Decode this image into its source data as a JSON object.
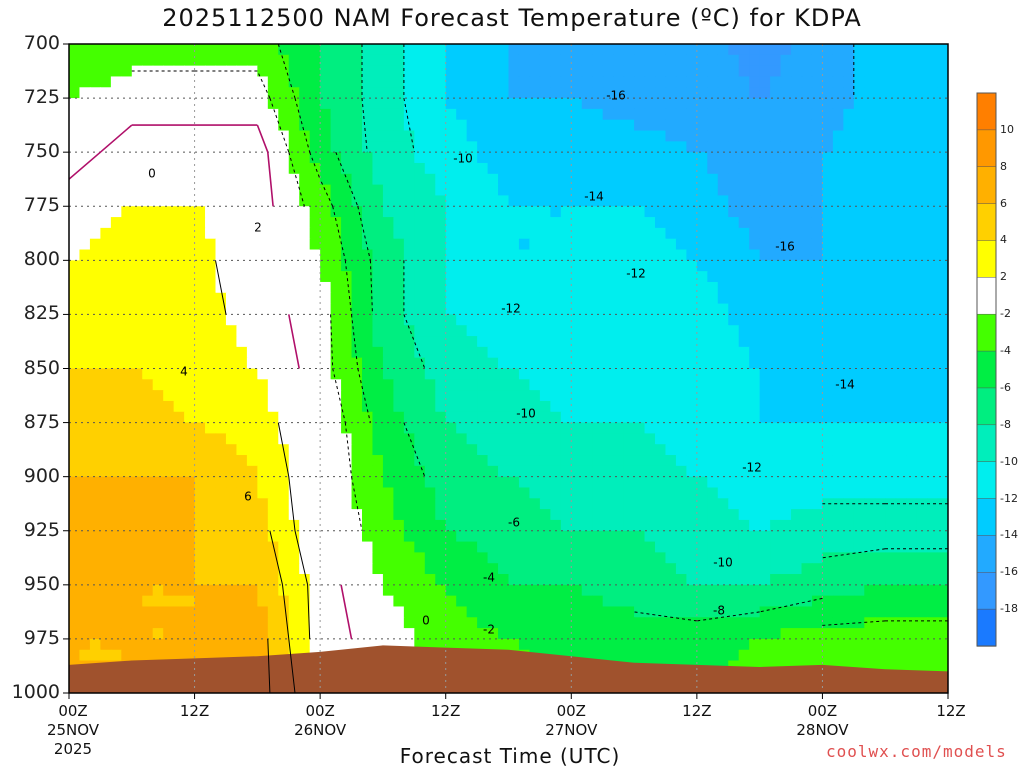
{
  "title": "2025112500 NAM Forecast Temperature (ºC) for KDPA",
  "x_axis_title": "Forecast Time (UTC)",
  "credit": "coolwx.com/models",
  "y_ticks": [
    "700",
    "725",
    "750",
    "775",
    "800",
    "825",
    "850",
    "875",
    "900",
    "925",
    "950",
    "975",
    "1000"
  ],
  "x_ticks": [
    {
      "label": "00Z",
      "sub": "25NOV",
      "sub2": "2025"
    },
    {
      "label": "12Z",
      "sub": "",
      "sub2": ""
    },
    {
      "label": "00Z",
      "sub": "26NOV",
      "sub2": ""
    },
    {
      "label": "12Z",
      "sub": "",
      "sub2": ""
    },
    {
      "label": "00Z",
      "sub": "27NOV",
      "sub2": ""
    },
    {
      "label": "12Z",
      "sub": "",
      "sub2": ""
    },
    {
      "label": "00Z",
      "sub": "28NOV",
      "sub2": ""
    },
    {
      "label": "12Z",
      "sub": "",
      "sub2": ""
    }
  ],
  "colorbar": {
    "labels": [
      "10",
      "8",
      "6",
      "4",
      "2",
      "-2",
      "-4",
      "-6",
      "-8",
      "-10",
      "-12",
      "-14",
      "-16",
      "-18"
    ],
    "colors": [
      "#ff7f00",
      "#ff9800",
      "#ffb000",
      "#ffd000",
      "#ffff00",
      "#ffffff",
      "#44ff00",
      "#00ee44",
      "#00ee80",
      "#00eebb",
      "#00eeee",
      "#00ccff",
      "#22aaff",
      "#3399ff",
      "#1a7aff"
    ]
  },
  "chart_data": {
    "type": "heatmap",
    "title": "2025112500 NAM Forecast Temperature (ºC) for KDPA",
    "xlabel": "Forecast Time (UTC)",
    "ylabel": "",
    "x_hours": [
      0,
      6,
      12,
      18,
      24,
      30,
      36,
      42,
      48,
      54,
      60,
      66,
      72,
      78,
      84
    ],
    "pressure_levels": [
      700,
      725,
      750,
      775,
      800,
      825,
      850,
      875,
      900,
      925,
      950,
      975,
      1000
    ],
    "xlim": [
      0,
      84
    ],
    "ylim": [
      1000,
      700
    ],
    "surface_pressure": [
      987,
      985,
      984,
      983,
      981,
      978,
      979,
      980,
      983,
      986,
      987,
      988,
      987,
      989,
      990
    ],
    "temperature": [
      [
        -4,
        -3,
        -3,
        -3,
        -6,
        -9,
        -12,
        -14,
        -15,
        -16,
        -15,
        -17,
        -15,
        -13,
        -12
      ],
      [
        -2,
        -1,
        -1,
        -1,
        -6,
        -9,
        -12,
        -14,
        -14,
        -15,
        -15,
        -16,
        -15,
        -13,
        -12
      ],
      [
        -1,
        1,
        1,
        1,
        -5,
        -9,
        -11,
        -13,
        -13,
        -13,
        -14,
        -15,
        -14,
        -13,
        -12
      ],
      [
        1,
        2,
        2,
        1,
        -3,
        -8,
        -10,
        -12,
        -12,
        -12,
        -13,
        -15,
        -14,
        -13,
        -12
      ],
      [
        2,
        3,
        3,
        0,
        -2,
        -7,
        -10,
        -12,
        -12,
        -11,
        -12,
        -14,
        -14,
        -13,
        -13
      ],
      [
        3,
        3,
        3,
        1,
        -1,
        -7,
        -10,
        -11,
        -12,
        -11,
        -11,
        -13,
        -14,
        -14,
        -13
      ],
      [
        4,
        4,
        3,
        2,
        -1,
        -6,
        -9,
        -10,
        -11,
        -11,
        -11,
        -12,
        -13,
        -13,
        -13
      ],
      [
        5,
        5,
        4,
        3,
        0,
        -5,
        -8,
        -9,
        -10,
        -10,
        -11,
        -12,
        -12,
        -12,
        -12
      ],
      [
        6,
        6,
        6,
        4,
        0,
        -4,
        -7,
        -8,
        -9,
        -9,
        -10,
        -11,
        -11,
        -11,
        -11
      ],
      [
        8,
        7,
        6,
        5,
        0,
        -3,
        -6,
        -7,
        -8,
        -8,
        -9,
        -10,
        -9,
        -9,
        -9
      ],
      [
        7,
        6,
        6,
        6,
        1,
        -2,
        -4,
        -6,
        -6,
        -7,
        -8,
        -8,
        -7,
        -6,
        -6
      ],
      [
        6,
        6,
        6,
        7,
        1,
        -1,
        -3,
        -4,
        -5,
        -5,
        -5,
        -4,
        -3,
        -3,
        -3
      ],
      [
        6,
        6,
        7,
        7,
        2,
        0,
        -2,
        -3,
        -4,
        -4,
        -4,
        -3,
        -2,
        -2,
        -2
      ]
    ],
    "contour_labels": [
      "0",
      "2",
      "4",
      "6",
      "0",
      "-2",
      "-4",
      "-6",
      "-8",
      "-10",
      "-10",
      "-10",
      "-12",
      "-12",
      "-12",
      "-14",
      "-14",
      "-16",
      "-16"
    ]
  }
}
